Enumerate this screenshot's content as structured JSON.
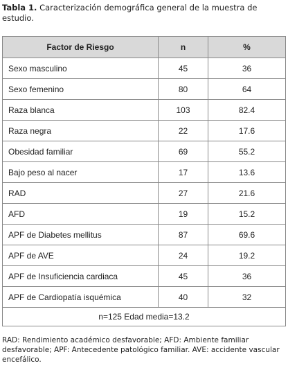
{
  "caption": {
    "label": "Tabla 1.",
    "text": "Caracterización demográfica general de la muestra de estudio."
  },
  "table": {
    "header": [
      "Factor de Riesgo",
      "n",
      "%"
    ],
    "rows": [
      [
        "Sexo masculino",
        45,
        36
      ],
      [
        "Sexo femenino",
        80,
        64
      ],
      [
        "Raza blanca",
        103,
        82.4
      ],
      [
        "Raza negra",
        22,
        17.6
      ],
      [
        "Obesidad familiar",
        69,
        55.2
      ],
      [
        "Bajo peso al nacer",
        17,
        13.6
      ],
      [
        "RAD",
        27,
        21.6
      ],
      [
        "AFD",
        19,
        15.2
      ],
      [
        "APF de Diabetes mellitus",
        87,
        69.6
      ],
      [
        "APF de AVE",
        24,
        19.2
      ],
      [
        "APF de Insuficiencia cardiaca",
        45,
        36
      ],
      [
        "APF de Cardiopatía isquémica",
        40,
        32
      ]
    ],
    "note": "n=125 Edad media=13.2"
  },
  "footnote": "RAD: Rendimiento académico desfavorable; AFD: Ambiente familiar desfavorable; APF: Antecedente patológico familiar. AVE: accidente vascular encefálico."
}
